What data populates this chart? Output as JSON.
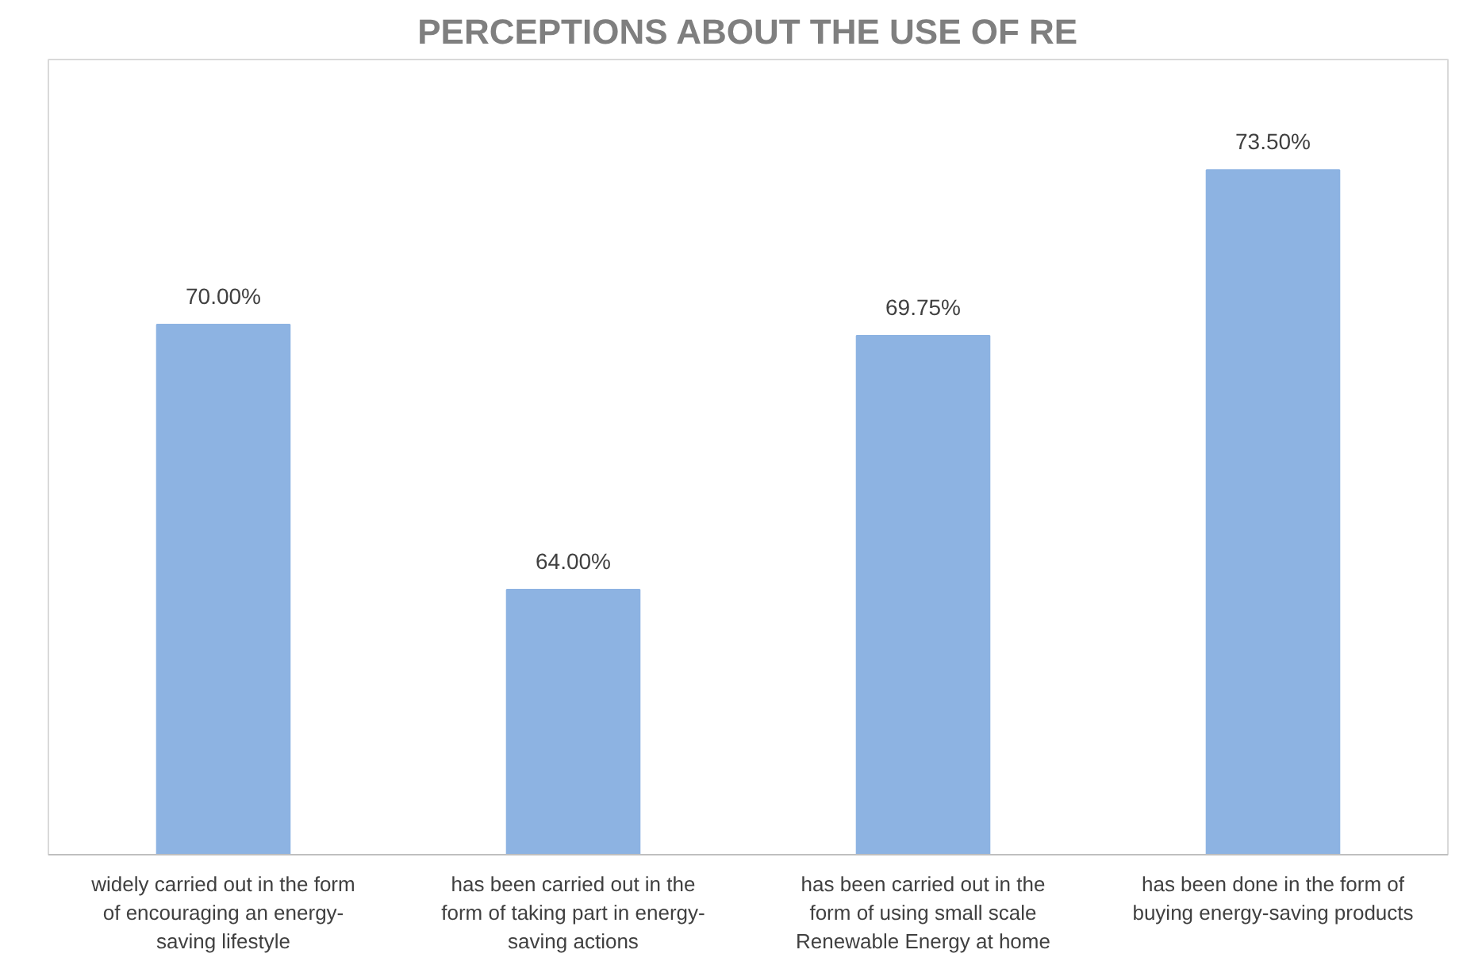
{
  "chart_data": {
    "type": "bar",
    "title": "PERCEPTIONS ABOUT THE USE OF RE",
    "categories": [
      "widely carried out in the form of encouraging an energy-saving lifestyle",
      "has been carried out in the form of taking part in energy-saving actions",
      "has been carried out in the form of using small scale Renewable Energy at home",
      "has been done in the form of buying energy-saving products"
    ],
    "values": [
      70.0,
      64.0,
      69.75,
      73.5
    ],
    "value_labels": [
      "70.00%",
      "64.00%",
      "69.75%",
      "73.50%"
    ],
    "color": "#8db3e2",
    "ylim": [
      58,
      76
    ],
    "tick_labels": "x",
    "grid": false
  }
}
